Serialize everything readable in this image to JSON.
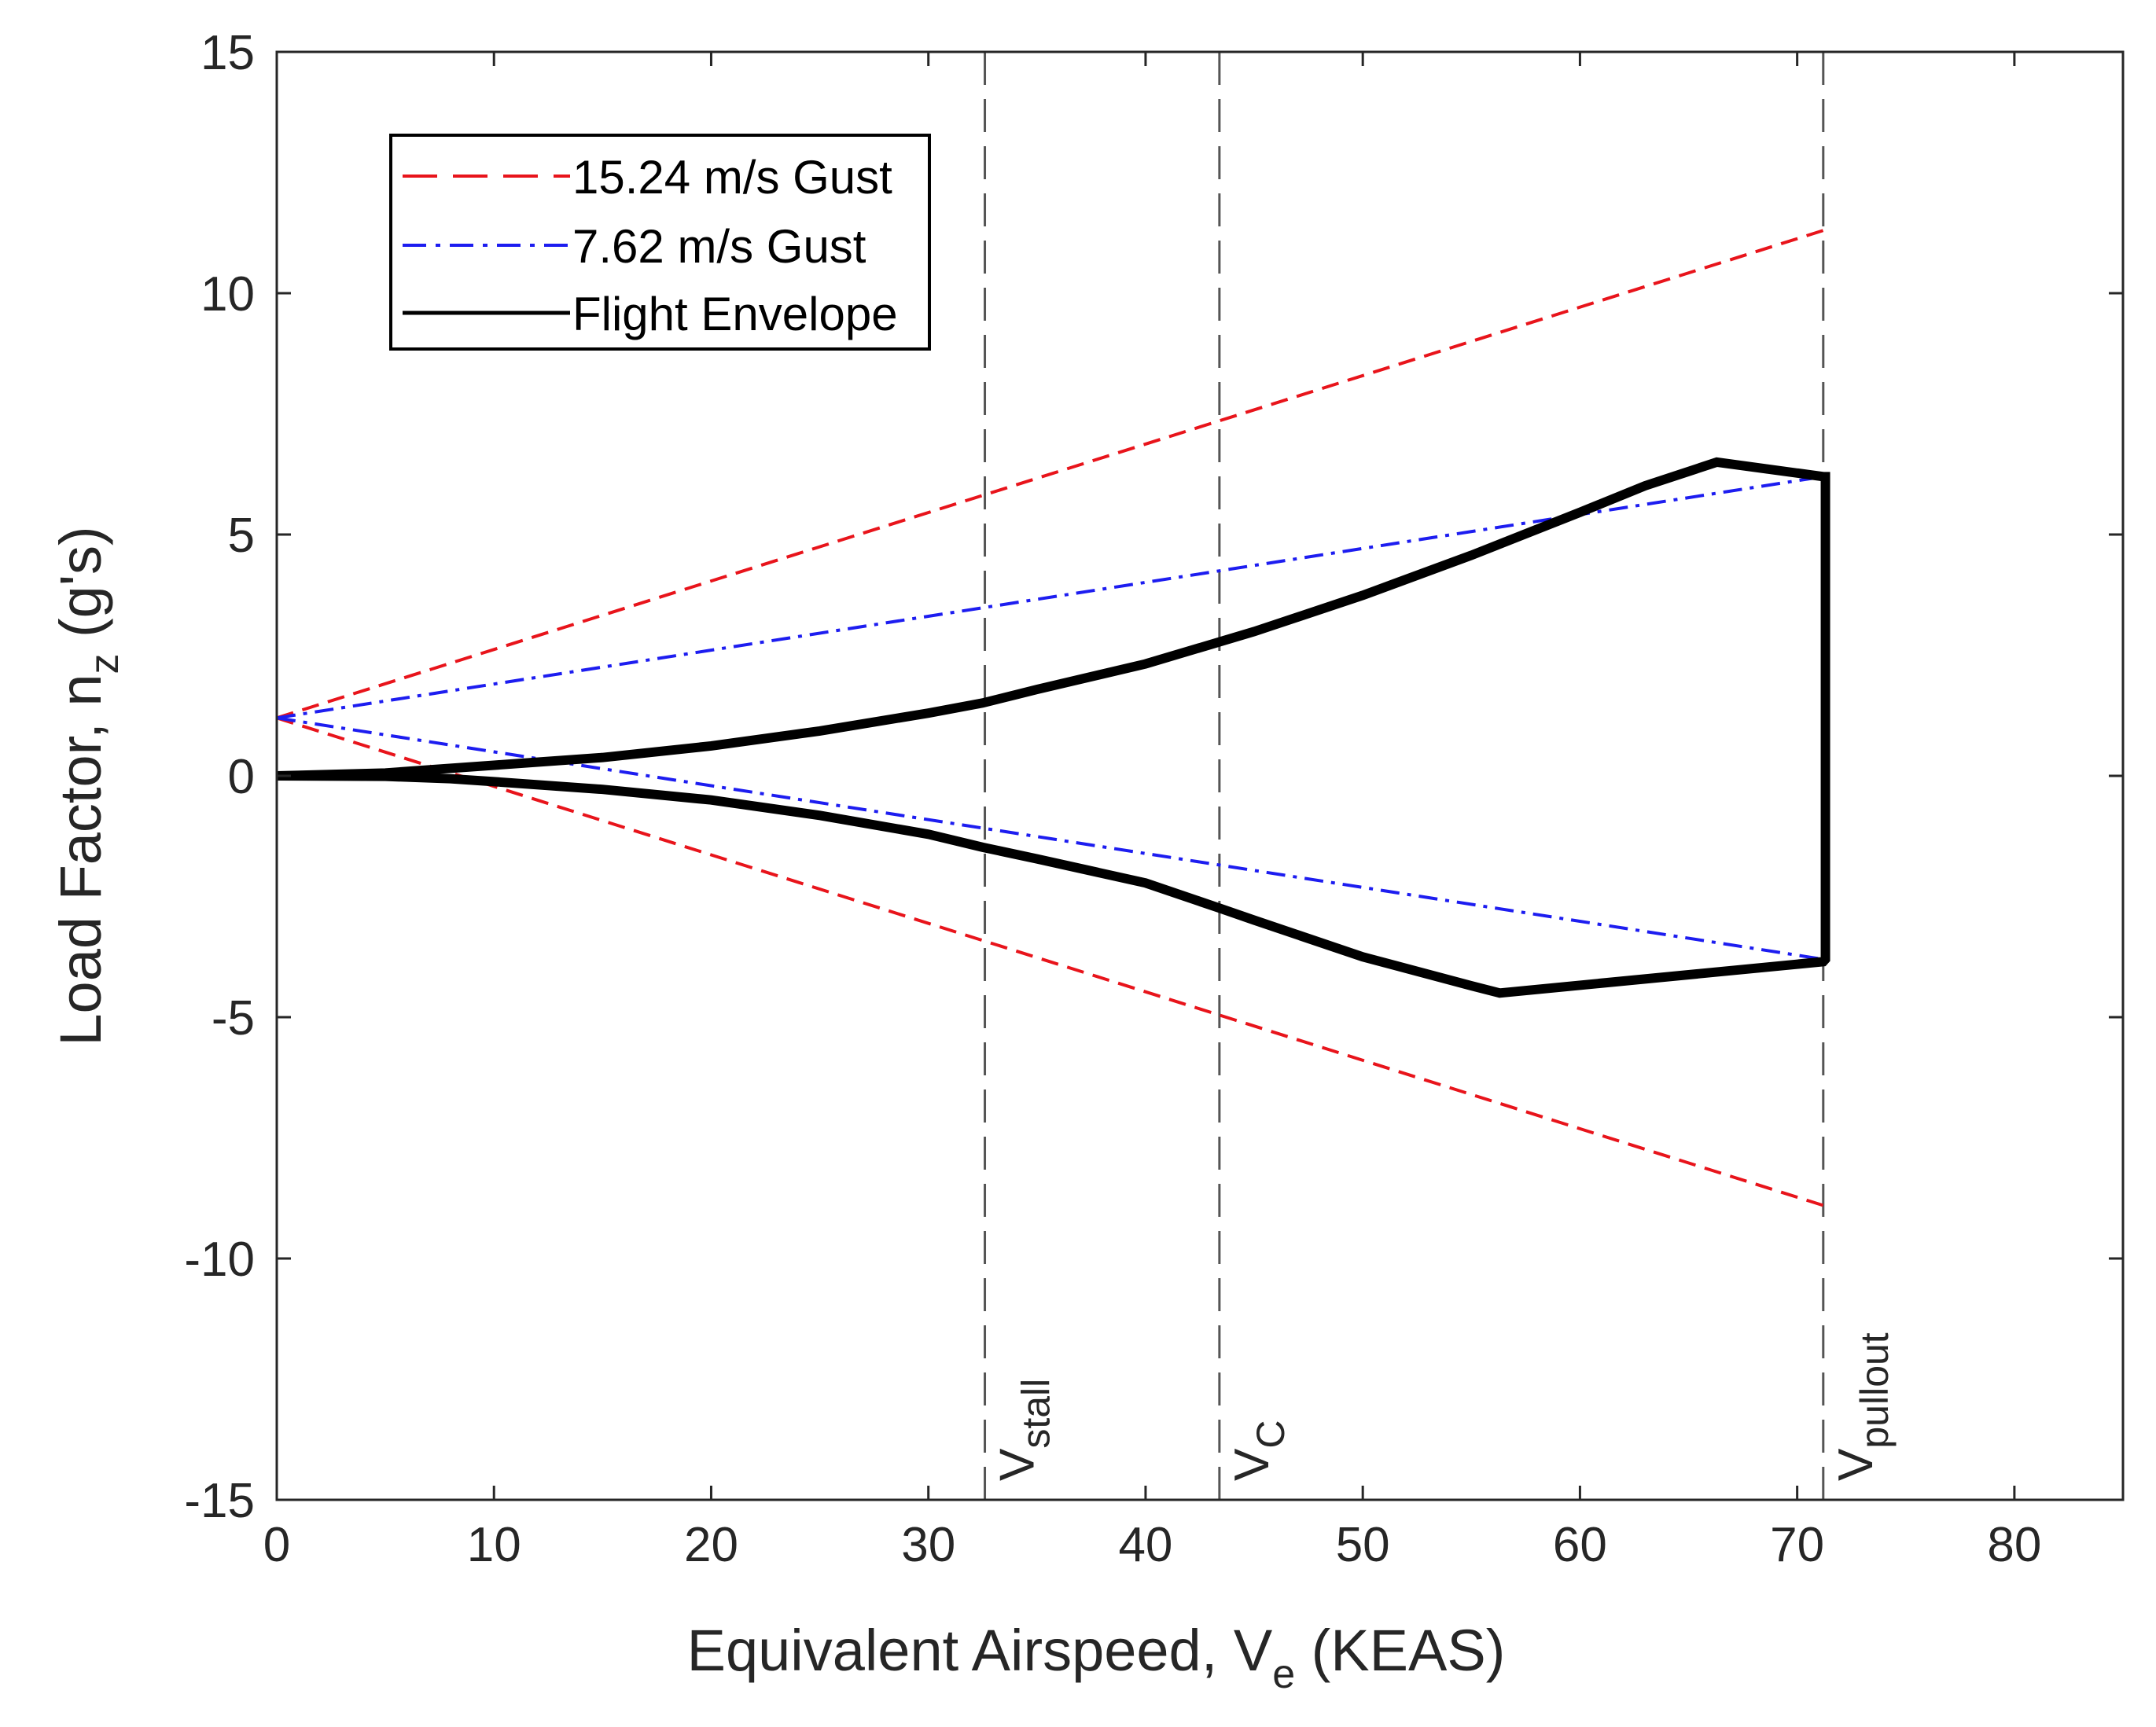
{
  "chart_data": {
    "type": "line",
    "title": "",
    "xlabel": {
      "main": "Equivalent Airspeed, V",
      "sub": "e",
      "tail": " (KEAS)"
    },
    "ylabel": {
      "main": "Load Factor, n",
      "sub": "z",
      "tail": " (g's)"
    },
    "xlim": [
      0,
      85
    ],
    "ylim": [
      -15,
      15
    ],
    "xticks": [
      0,
      10,
      20,
      30,
      40,
      50,
      60,
      70,
      80
    ],
    "yticks": [
      -15,
      -10,
      -5,
      0,
      5,
      10,
      15
    ],
    "grid": false,
    "legend_position": "top-left",
    "colors": {
      "gust_15": "#e8141b",
      "gust_7": "#1d1df0",
      "envelope": "#000000",
      "vline": "#555555",
      "axis": "#262626"
    },
    "series": [
      {
        "name": "15.24 m/s Gust",
        "style": "dashed",
        "color": "#e8141b",
        "segments": [
          {
            "x": [
              0,
              71.2
            ],
            "y": [
              1.2,
              11.3
            ]
          },
          {
            "x": [
              0,
              71.2
            ],
            "y": [
              1.2,
              -8.9
            ]
          }
        ]
      },
      {
        "name": "7.62 m/s Gust",
        "style": "dashdot",
        "color": "#1d1df0",
        "segments": [
          {
            "x": [
              0,
              71.2
            ],
            "y": [
              1.2,
              6.2
            ]
          },
          {
            "x": [
              0,
              71.2
            ],
            "y": [
              1.2,
              -3.8
            ]
          }
        ]
      },
      {
        "name": "Flight Envelope",
        "style": "solid",
        "color": "#000000",
        "x": [
          0,
          5,
          10,
          15,
          20,
          25,
          30,
          32.5,
          35,
          40,
          45,
          50,
          55,
          60,
          63,
          66.3,
          71.2,
          71.3,
          71.3,
          71.2,
          56.3,
          55,
          50,
          45,
          43.4,
          40,
          35,
          32.5,
          30,
          25,
          20,
          15,
          10,
          8,
          5,
          0
        ],
        "y": [
          0,
          0.06,
          0.22,
          0.38,
          0.62,
          0.93,
          1.3,
          1.51,
          1.79,
          2.32,
          2.99,
          3.74,
          4.57,
          5.46,
          6.01,
          6.5,
          6.2,
          6.2,
          -3.8,
          -3.85,
          -4.5,
          -4.35,
          -3.75,
          -2.99,
          -2.74,
          -2.22,
          -1.72,
          -1.48,
          -1.21,
          -0.82,
          -0.5,
          -0.28,
          -0.12,
          -0.06,
          -0.01,
          0
        ]
      }
    ],
    "vlines": [
      {
        "x": 32.6,
        "label": "V",
        "sub": "stall"
      },
      {
        "x": 43.4,
        "label": "V",
        "sub": "C"
      },
      {
        "x": 71.2,
        "label": "V",
        "sub": "pullout"
      }
    ]
  }
}
